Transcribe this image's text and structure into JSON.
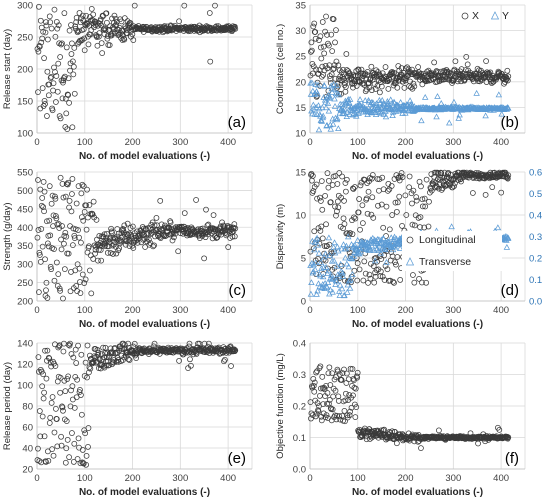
{
  "chart_data": [
    {
      "id": "a",
      "type": "scatter",
      "panel_label": "(a)",
      "xlabel": "No. of model evaluations (-)",
      "ylabel": "Release start (day)",
      "xlim": [
        0,
        450
      ],
      "xticks": [
        0,
        100,
        200,
        300,
        400
      ],
      "ylim": [
        100,
        300
      ],
      "yticks": [
        100,
        150,
        200,
        250,
        300
      ],
      "grid": true,
      "series": [
        {
          "marker": "circle",
          "color": "#3a3a3a",
          "pattern": {
            "n": 420,
            "early": {
              "start": 0,
              "end": 80,
              "min": 105,
              "max": 298
            },
            "mid": {
              "start": 80,
              "end": 200,
              "center": 262,
              "spread": 30
            },
            "late": {
              "start": 200,
              "end": 420,
              "center": 263,
              "spread": 4
            }
          }
        }
      ]
    },
    {
      "id": "b",
      "type": "scatter",
      "panel_label": "(b)",
      "xlabel": "No. of model evaluations (-)",
      "ylabel": "Coordinates (cell no.)",
      "xlim": [
        0,
        450
      ],
      "xticks": [
        0,
        100,
        200,
        300,
        400
      ],
      "ylim": [
        10,
        35
      ],
      "yticks": [
        10,
        15,
        20,
        25,
        30,
        35
      ],
      "grid": true,
      "legend": {
        "position": "top-right",
        "entries": [
          "X",
          "Y"
        ]
      },
      "series": [
        {
          "name": "X",
          "marker": "circle",
          "color": "#3a3a3a",
          "pattern": {
            "n": 420,
            "early": {
              "start": 0,
              "end": 60,
              "min": 17,
              "max": 33
            },
            "mid": {
              "start": 60,
              "end": 220,
              "center": 20.5,
              "spread": 2.5
            },
            "late": {
              "start": 220,
              "end": 420,
              "center": 21,
              "spread": 1.2
            }
          }
        },
        {
          "name": "Y",
          "marker": "triangle",
          "color": "#5b9bd5",
          "pattern": {
            "n": 420,
            "early": {
              "start": 0,
              "end": 60,
              "min": 10.5,
              "max": 20
            },
            "mid": {
              "start": 60,
              "end": 220,
              "center": 15,
              "spread": 1.8
            },
            "late": {
              "start": 220,
              "end": 420,
              "center": 14.8,
              "spread": 0.25
            }
          }
        }
      ]
    },
    {
      "id": "c",
      "type": "scatter",
      "panel_label": "(c)",
      "xlabel": "No. of model evaluations (-)",
      "ylabel": "Strength (g/day)",
      "xlim": [
        0,
        450
      ],
      "xticks": [
        0,
        100,
        200,
        300,
        400
      ],
      "ylim": [
        200,
        550
      ],
      "yticks": [
        200,
        250,
        300,
        350,
        400,
        450,
        500,
        550
      ],
      "grid": true,
      "series": [
        {
          "marker": "circle",
          "color": "#3a3a3a",
          "pattern": {
            "n": 420,
            "early": {
              "start": 0,
              "end": 120,
              "min": 205,
              "max": 535
            },
            "mid": {
              "start": 120,
              "end": 260,
              "center": 355,
              "spread": 45
            },
            "late": {
              "start": 260,
              "end": 420,
              "center": 390,
              "spread": 18
            }
          }
        }
      ]
    },
    {
      "id": "d",
      "type": "scatter",
      "panel_label": "(d)",
      "xlabel": "No. of model evaluations (-)",
      "ylabel": "Dispersivity (m)",
      "ylabel_right": "",
      "xlim": [
        0,
        450
      ],
      "xticks": [
        0,
        100,
        200,
        300,
        400
      ],
      "ylim": [
        0,
        15
      ],
      "yticks": [
        0,
        5,
        10,
        15
      ],
      "ylim_right": [
        0,
        0.6
      ],
      "yticks_right": [
        "0.0",
        "0.1",
        "0.2",
        "0.3",
        "0.4",
        "0.5",
        "0.6"
      ],
      "grid": true,
      "legend": {
        "position": "bottom-right",
        "entries": [
          "Longitudinal",
          "Transverse"
        ]
      },
      "series": [
        {
          "name": "Longitudinal",
          "marker": "circle",
          "color": "#3a3a3a",
          "axis": "left",
          "pattern": {
            "n": 420,
            "early": {
              "start": 0,
              "end": 250,
              "min": 2,
              "max": 15
            },
            "mid": {
              "start": 250,
              "end": 320,
              "center": 13.5,
              "spread": 1.5
            },
            "late": {
              "start": 320,
              "end": 420,
              "center": 14.6,
              "spread": 0.35
            }
          }
        },
        {
          "name": "Transverse",
          "marker": "triangle",
          "color": "#5b9bd5",
          "axis": "right",
          "pattern": {
            "n": 420,
            "early": {
              "start": 0,
              "end": 90,
              "min": 0.02,
              "max": 0.3
            },
            "mid": {
              "start": 90,
              "end": 260,
              "center": 0.25,
              "spread": 0.04
            },
            "late": {
              "start": 260,
              "end": 420,
              "center": 0.29,
              "spread": 0.008
            }
          }
        }
      ]
    },
    {
      "id": "e",
      "type": "scatter",
      "panel_label": "(e)",
      "xlabel": "No. of model evaluations (-)",
      "ylabel": "Release period (day)",
      "xlim": [
        0,
        450
      ],
      "xticks": [
        0,
        100,
        200,
        300,
        400
      ],
      "ylim": [
        20,
        140
      ],
      "yticks": [
        20,
        40,
        60,
        80,
        100,
        120,
        140
      ],
      "grid": true,
      "series": [
        {
          "marker": "circle",
          "color": "#3a3a3a",
          "pattern": {
            "n": 420,
            "early": {
              "start": 0,
              "end": 110,
              "min": 24,
              "max": 140
            },
            "mid": {
              "start": 110,
              "end": 210,
              "center": 125,
              "spread": 12
            },
            "late": {
              "start": 210,
              "end": 420,
              "center": 133,
              "spread": 3
            }
          }
        }
      ]
    },
    {
      "id": "f",
      "type": "scatter",
      "panel_label": "(f)",
      "xlabel": "No. of model evaluations (-)",
      "ylabel": "Objective function (mg/L)",
      "xlim": [
        0,
        450
      ],
      "xticks": [
        0,
        100,
        200,
        300,
        400
      ],
      "ylim": [
        0,
        0.4
      ],
      "yticks": [
        "0.0",
        "0.1",
        "0.2",
        "0.3",
        "0.4"
      ],
      "grid": true,
      "series": [
        {
          "marker": "circle",
          "color": "#3a3a3a",
          "pattern": {
            "n": 420,
            "early": {
              "start": 0,
              "end": 100,
              "min": 0.15,
              "max": 0.33
            },
            "mid": {
              "start": 100,
              "end": 230,
              "center": 0.115,
              "spread": 0.02
            },
            "late": {
              "start": 230,
              "end": 420,
              "center": 0.1,
              "spread": 0.004
            }
          }
        }
      ]
    }
  ]
}
